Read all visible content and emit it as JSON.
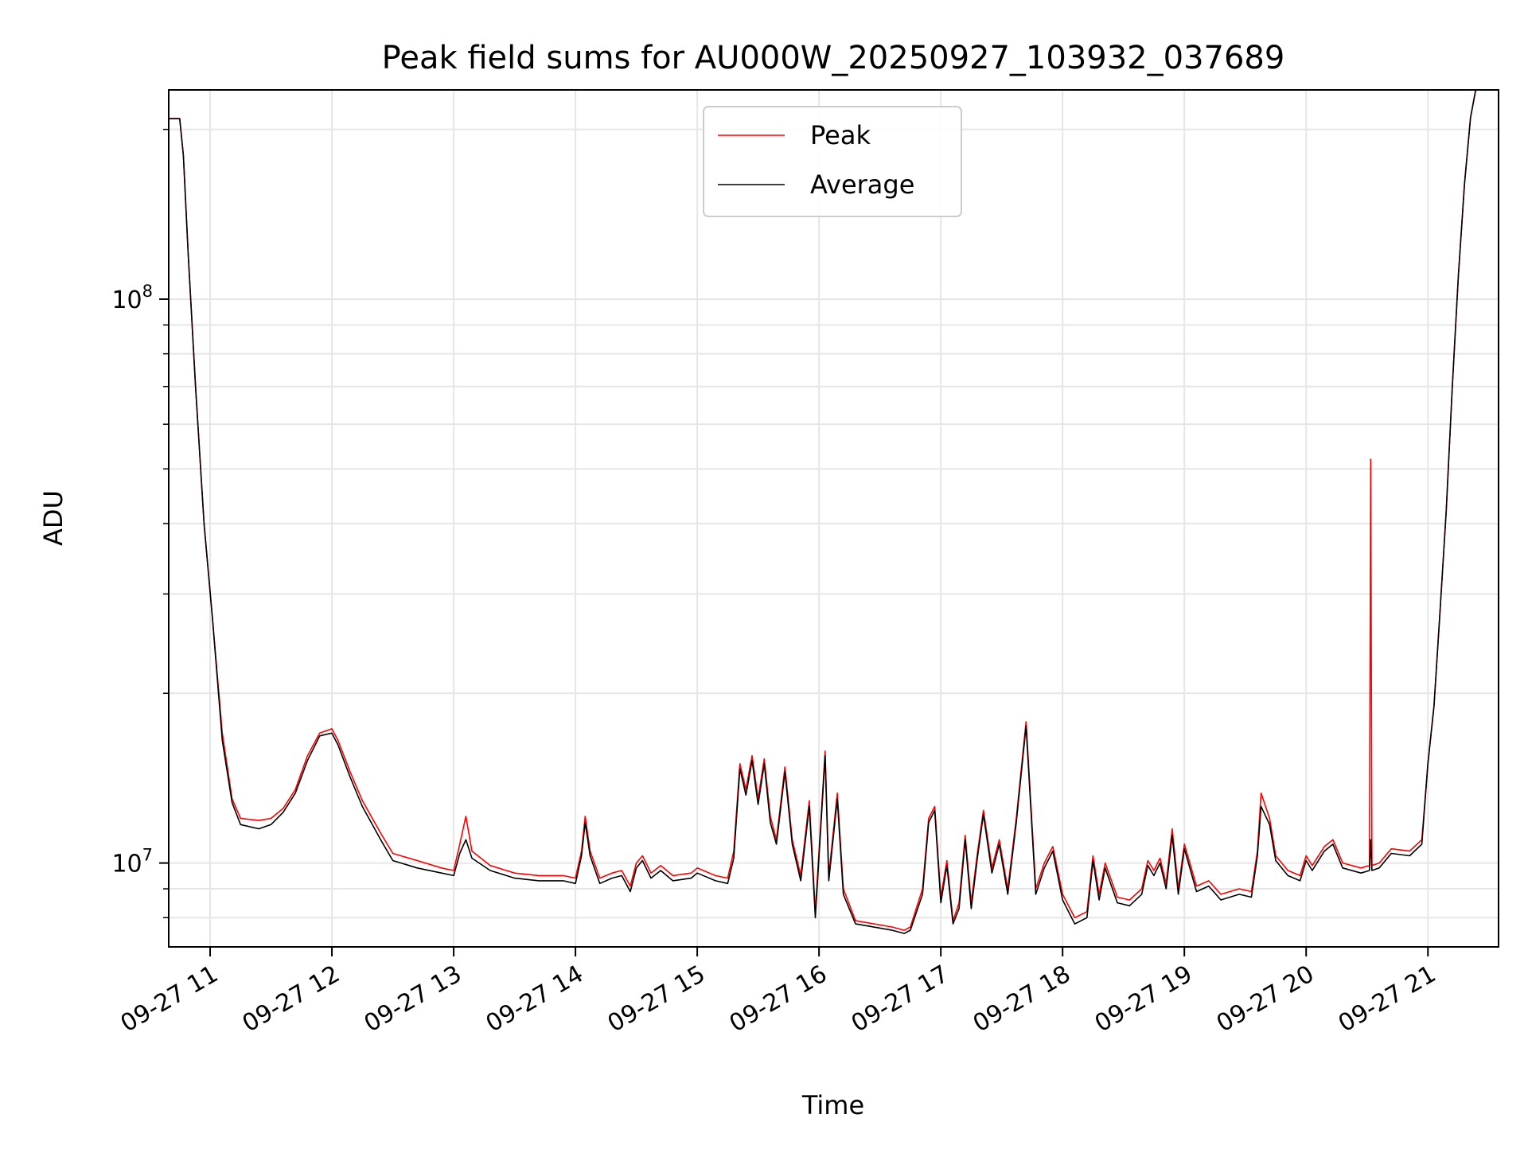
{
  "chart_data": {
    "type": "line",
    "title": "Peak field sums for AU000W_20250927_103932_037689",
    "xlabel": "Time",
    "ylabel": "ADU",
    "x_axis": {
      "kind": "time",
      "date_label": "09-27",
      "range_hours": [
        10.66,
        21.58
      ],
      "tick_hours": [
        11,
        12,
        13,
        14,
        15,
        16,
        17,
        18,
        19,
        20,
        21
      ],
      "tick_labels": [
        "09-27 11",
        "09-27 12",
        "09-27 13",
        "09-27 14",
        "09-27 15",
        "09-27 16",
        "09-27 17",
        "09-27 18",
        "09-27 19",
        "09-27 20",
        "09-27 21"
      ]
    },
    "y_axis": {
      "scale": "log",
      "range": [
        7100000,
        235000000
      ],
      "major_ticks": [
        10000000,
        100000000
      ],
      "major_labels": [
        "10",
        "10"
      ],
      "major_exponents": [
        "7",
        "8"
      ],
      "minor_ticks": [
        8000000,
        9000000,
        20000000,
        30000000,
        40000000,
        50000000,
        60000000,
        70000000,
        80000000,
        90000000,
        200000000
      ]
    },
    "grid": true,
    "legend": {
      "position": "top-center"
    },
    "series": [
      {
        "name": "Peak",
        "color": "#ff0000",
        "points": [
          [
            10.66,
            209000000
          ],
          [
            10.75,
            209000000
          ],
          [
            10.78,
            180000000
          ],
          [
            10.82,
            120000000
          ],
          [
            10.88,
            70000000
          ],
          [
            10.95,
            40000000
          ],
          [
            11.02,
            27000000
          ],
          [
            11.1,
            17000000
          ],
          [
            11.18,
            13000000
          ],
          [
            11.25,
            12000000
          ],
          [
            11.4,
            11900000
          ],
          [
            11.5,
            12000000
          ],
          [
            11.6,
            12500000
          ],
          [
            11.7,
            13500000
          ],
          [
            11.8,
            15500000
          ],
          [
            11.9,
            17000000
          ],
          [
            12.0,
            17300000
          ],
          [
            12.05,
            16500000
          ],
          [
            12.15,
            14500000
          ],
          [
            12.25,
            12900000
          ],
          [
            12.4,
            11300000
          ],
          [
            12.5,
            10400000
          ],
          [
            12.7,
            10100000
          ],
          [
            12.9,
            9800000
          ],
          [
            13.0,
            9700000
          ],
          [
            13.05,
            10800000
          ],
          [
            13.1,
            12100000
          ],
          [
            13.15,
            10500000
          ],
          [
            13.3,
            9900000
          ],
          [
            13.5,
            9600000
          ],
          [
            13.7,
            9500000
          ],
          [
            13.9,
            9500000
          ],
          [
            14.0,
            9400000
          ],
          [
            14.05,
            10500000
          ],
          [
            14.08,
            12100000
          ],
          [
            14.12,
            10500000
          ],
          [
            14.2,
            9400000
          ],
          [
            14.3,
            9600000
          ],
          [
            14.38,
            9700000
          ],
          [
            14.45,
            9100000
          ],
          [
            14.5,
            10000000
          ],
          [
            14.55,
            10300000
          ],
          [
            14.62,
            9600000
          ],
          [
            14.7,
            9900000
          ],
          [
            14.8,
            9500000
          ],
          [
            14.95,
            9600000
          ],
          [
            15.0,
            9800000
          ],
          [
            15.15,
            9500000
          ],
          [
            15.25,
            9400000
          ],
          [
            15.3,
            10500000
          ],
          [
            15.35,
            15000000
          ],
          [
            15.4,
            13500000
          ],
          [
            15.45,
            15500000
          ],
          [
            15.5,
            13000000
          ],
          [
            15.55,
            15300000
          ],
          [
            15.6,
            12100000
          ],
          [
            15.65,
            11000000
          ],
          [
            15.72,
            14800000
          ],
          [
            15.78,
            11000000
          ],
          [
            15.85,
            9500000
          ],
          [
            15.92,
            12900000
          ],
          [
            15.97,
            8200000
          ],
          [
            16.05,
            15800000
          ],
          [
            16.08,
            9500000
          ],
          [
            16.15,
            13300000
          ],
          [
            16.2,
            9000000
          ],
          [
            16.3,
            7900000
          ],
          [
            16.6,
            7700000
          ],
          [
            16.7,
            7600000
          ],
          [
            16.75,
            7700000
          ],
          [
            16.85,
            9000000
          ],
          [
            16.9,
            12000000
          ],
          [
            16.95,
            12600000
          ],
          [
            17.0,
            8700000
          ],
          [
            17.05,
            10100000
          ],
          [
            17.1,
            7900000
          ],
          [
            17.15,
            8500000
          ],
          [
            17.2,
            11200000
          ],
          [
            17.25,
            8500000
          ],
          [
            17.3,
            10400000
          ],
          [
            17.35,
            12400000
          ],
          [
            17.42,
            9800000
          ],
          [
            17.48,
            11000000
          ],
          [
            17.55,
            9000000
          ],
          [
            17.62,
            12000000
          ],
          [
            17.7,
            17800000
          ],
          [
            17.78,
            9000000
          ],
          [
            17.85,
            10000000
          ],
          [
            17.92,
            10700000
          ],
          [
            18.0,
            8800000
          ],
          [
            18.1,
            8000000
          ],
          [
            18.2,
            8200000
          ],
          [
            18.25,
            10300000
          ],
          [
            18.3,
            8800000
          ],
          [
            18.35,
            10000000
          ],
          [
            18.45,
            8700000
          ],
          [
            18.55,
            8600000
          ],
          [
            18.65,
            9000000
          ],
          [
            18.7,
            10100000
          ],
          [
            18.75,
            9700000
          ],
          [
            18.8,
            10200000
          ],
          [
            18.85,
            9200000
          ],
          [
            18.9,
            11500000
          ],
          [
            18.95,
            9000000
          ],
          [
            19.0,
            10800000
          ],
          [
            19.1,
            9100000
          ],
          [
            19.2,
            9300000
          ],
          [
            19.3,
            8800000
          ],
          [
            19.45,
            9000000
          ],
          [
            19.55,
            8900000
          ],
          [
            19.6,
            10500000
          ],
          [
            19.63,
            13300000
          ],
          [
            19.7,
            12000000
          ],
          [
            19.75,
            10300000
          ],
          [
            19.85,
            9700000
          ],
          [
            19.95,
            9500000
          ],
          [
            20.0,
            10300000
          ],
          [
            20.05,
            9900000
          ],
          [
            20.15,
            10700000
          ],
          [
            20.22,
            11000000
          ],
          [
            20.3,
            10000000
          ],
          [
            20.45,
            9800000
          ],
          [
            20.52,
            9900000
          ],
          [
            20.53,
            52000000
          ],
          [
            20.54,
            9900000
          ],
          [
            20.6,
            10000000
          ],
          [
            20.7,
            10600000
          ],
          [
            20.85,
            10500000
          ],
          [
            20.95,
            11000000
          ],
          [
            21.0,
            15000000
          ],
          [
            21.05,
            19000000
          ],
          [
            21.1,
            28000000
          ],
          [
            21.15,
            42000000
          ],
          [
            21.2,
            70000000
          ],
          [
            21.25,
            110000000
          ],
          [
            21.3,
            160000000
          ],
          [
            21.35,
            210000000
          ],
          [
            21.4,
            240000000
          ]
        ]
      },
      {
        "name": "Average",
        "color": "#000000",
        "points": [
          [
            10.66,
            209000000
          ],
          [
            10.75,
            209000000
          ],
          [
            10.78,
            180000000
          ],
          [
            10.82,
            120000000
          ],
          [
            10.88,
            70000000
          ],
          [
            10.95,
            40000000
          ],
          [
            11.02,
            27000000
          ],
          [
            11.1,
            16500000
          ],
          [
            11.18,
            12800000
          ],
          [
            11.25,
            11700000
          ],
          [
            11.4,
            11500000
          ],
          [
            11.5,
            11700000
          ],
          [
            11.6,
            12300000
          ],
          [
            11.7,
            13300000
          ],
          [
            11.8,
            15200000
          ],
          [
            11.9,
            16800000
          ],
          [
            12.0,
            17000000
          ],
          [
            12.05,
            16200000
          ],
          [
            12.15,
            14200000
          ],
          [
            12.25,
            12600000
          ],
          [
            12.4,
            11000000
          ],
          [
            12.5,
            10100000
          ],
          [
            12.7,
            9800000
          ],
          [
            12.9,
            9600000
          ],
          [
            13.0,
            9500000
          ],
          [
            13.05,
            10400000
          ],
          [
            13.1,
            11000000
          ],
          [
            13.15,
            10200000
          ],
          [
            13.3,
            9700000
          ],
          [
            13.5,
            9400000
          ],
          [
            13.7,
            9300000
          ],
          [
            13.9,
            9300000
          ],
          [
            14.0,
            9200000
          ],
          [
            14.05,
            10300000
          ],
          [
            14.08,
            11800000
          ],
          [
            14.12,
            10300000
          ],
          [
            14.2,
            9200000
          ],
          [
            14.3,
            9400000
          ],
          [
            14.38,
            9500000
          ],
          [
            14.45,
            8900000
          ],
          [
            14.5,
            9800000
          ],
          [
            14.55,
            10100000
          ],
          [
            14.62,
            9400000
          ],
          [
            14.7,
            9700000
          ],
          [
            14.8,
            9300000
          ],
          [
            14.95,
            9400000
          ],
          [
            15.0,
            9600000
          ],
          [
            15.15,
            9300000
          ],
          [
            15.25,
            9200000
          ],
          [
            15.3,
            10200000
          ],
          [
            15.35,
            14700000
          ],
          [
            15.4,
            13200000
          ],
          [
            15.45,
            15200000
          ],
          [
            15.5,
            12700000
          ],
          [
            15.55,
            15000000
          ],
          [
            15.6,
            11800000
          ],
          [
            15.65,
            10800000
          ],
          [
            15.72,
            14500000
          ],
          [
            15.78,
            10800000
          ],
          [
            15.85,
            9300000
          ],
          [
            15.92,
            12600000
          ],
          [
            15.97,
            8000000
          ],
          [
            16.05,
            15500000
          ],
          [
            16.08,
            9300000
          ],
          [
            16.15,
            13000000
          ],
          [
            16.2,
            8800000
          ],
          [
            16.3,
            7800000
          ],
          [
            16.6,
            7600000
          ],
          [
            16.7,
            7500000
          ],
          [
            16.75,
            7600000
          ],
          [
            16.85,
            8800000
          ],
          [
            16.9,
            11800000
          ],
          [
            16.95,
            12400000
          ],
          [
            17.0,
            8500000
          ],
          [
            17.05,
            9900000
          ],
          [
            17.1,
            7800000
          ],
          [
            17.15,
            8300000
          ],
          [
            17.2,
            11000000
          ],
          [
            17.25,
            8300000
          ],
          [
            17.3,
            10200000
          ],
          [
            17.35,
            12200000
          ],
          [
            17.42,
            9600000
          ],
          [
            17.48,
            10800000
          ],
          [
            17.55,
            8800000
          ],
          [
            17.62,
            11800000
          ],
          [
            17.7,
            17500000
          ],
          [
            17.78,
            8800000
          ],
          [
            17.85,
            9800000
          ],
          [
            17.92,
            10500000
          ],
          [
            18.0,
            8600000
          ],
          [
            18.1,
            7800000
          ],
          [
            18.2,
            8000000
          ],
          [
            18.25,
            10100000
          ],
          [
            18.3,
            8600000
          ],
          [
            18.35,
            9800000
          ],
          [
            18.45,
            8500000
          ],
          [
            18.55,
            8400000
          ],
          [
            18.65,
            8800000
          ],
          [
            18.7,
            9900000
          ],
          [
            18.75,
            9500000
          ],
          [
            18.8,
            10000000
          ],
          [
            18.85,
            9000000
          ],
          [
            18.9,
            11200000
          ],
          [
            18.95,
            8800000
          ],
          [
            19.0,
            10600000
          ],
          [
            19.1,
            8900000
          ],
          [
            19.2,
            9100000
          ],
          [
            19.3,
            8600000
          ],
          [
            19.45,
            8800000
          ],
          [
            19.55,
            8700000
          ],
          [
            19.6,
            10300000
          ],
          [
            19.63,
            12600000
          ],
          [
            19.7,
            11700000
          ],
          [
            19.75,
            10100000
          ],
          [
            19.85,
            9500000
          ],
          [
            19.95,
            9300000
          ],
          [
            20.0,
            10100000
          ],
          [
            20.05,
            9700000
          ],
          [
            20.15,
            10500000
          ],
          [
            20.22,
            10800000
          ],
          [
            20.3,
            9800000
          ],
          [
            20.45,
            9600000
          ],
          [
            20.52,
            9700000
          ],
          [
            20.53,
            11000000
          ],
          [
            20.54,
            9700000
          ],
          [
            20.6,
            9800000
          ],
          [
            20.7,
            10400000
          ],
          [
            20.85,
            10300000
          ],
          [
            20.95,
            10800000
          ],
          [
            21.0,
            15000000
          ],
          [
            21.05,
            19000000
          ],
          [
            21.1,
            28000000
          ],
          [
            21.15,
            42000000
          ],
          [
            21.2,
            70000000
          ],
          [
            21.25,
            110000000
          ],
          [
            21.3,
            160000000
          ],
          [
            21.35,
            210000000
          ],
          [
            21.4,
            240000000
          ]
        ]
      }
    ]
  }
}
